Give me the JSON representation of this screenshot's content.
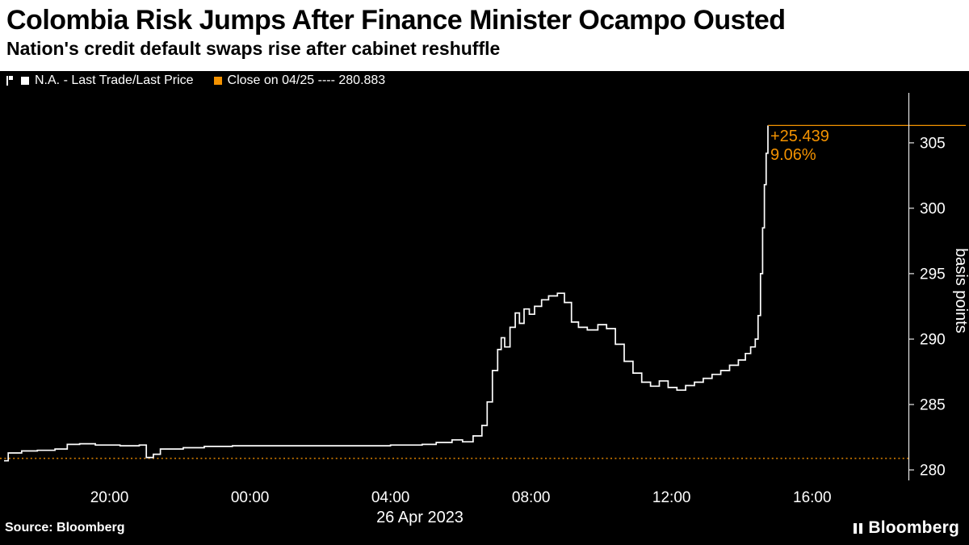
{
  "header": {
    "title": "Colombia Risk Jumps After Finance Minister Ocampo Ousted",
    "subtitle": "Nation's credit default swaps rise after cabinet reshuffle"
  },
  "legend": {
    "series1": "N.A. - Last Trade/Last Price",
    "series2": "Close on 04/25 ---- 280.883"
  },
  "annotation": {
    "change": "+25.439",
    "pct": "9.06%"
  },
  "footer": {
    "source": "Source:  Bloomberg",
    "brand": "Bloomberg"
  },
  "colors": {
    "bg": "#000000",
    "panel": "#ffffff",
    "line": "#ffffff",
    "accent": "#f39200",
    "close_line": "#d27c00",
    "axis": "#e6e6e6",
    "tick_text": "#ffffff"
  },
  "chart_data": {
    "type": "line",
    "step": true,
    "series_name": "N.A. - Last Trade/Last Price",
    "ylabel": "basis points",
    "xlabel": "26 Apr 2023",
    "grid": false,
    "legend_position": "top-left",
    "x_unit": "hours (t=3 → 20:00 on 25 Apr, t=23 → 16:00 on 26 Apr 2023)",
    "x_range": [
      0,
      25.74
    ],
    "y_range": [
      279.2,
      308.2
    ],
    "y_ticks": [
      280,
      285,
      290,
      295,
      300,
      305
    ],
    "x_ticks": [
      {
        "t": 3,
        "label": "20:00"
      },
      {
        "t": 7,
        "label": "00:00"
      },
      {
        "t": 11,
        "label": "04:00"
      },
      {
        "t": 15,
        "label": "08:00"
      },
      {
        "t": 19,
        "label": "12:00"
      },
      {
        "t": 23,
        "label": "16:00"
      }
    ],
    "close_prev": 280.883,
    "last_price": 306.322,
    "points": [
      [
        0.0,
        280.7
      ],
      [
        0.12,
        281.3
      ],
      [
        0.5,
        281.45
      ],
      [
        0.95,
        281.5
      ],
      [
        1.45,
        281.6
      ],
      [
        1.8,
        281.95
      ],
      [
        2.15,
        282.0
      ],
      [
        2.6,
        281.9
      ],
      [
        3.3,
        281.85
      ],
      [
        3.85,
        281.9
      ],
      [
        4.05,
        280.95
      ],
      [
        4.25,
        281.2
      ],
      [
        4.45,
        281.6
      ],
      [
        5.1,
        281.7
      ],
      [
        5.7,
        281.8
      ],
      [
        6.5,
        281.85
      ],
      [
        8.0,
        281.85
      ],
      [
        9.5,
        281.85
      ],
      [
        11.0,
        281.9
      ],
      [
        11.9,
        281.95
      ],
      [
        12.3,
        282.1
      ],
      [
        12.75,
        282.3
      ],
      [
        13.05,
        282.15
      ],
      [
        13.35,
        282.6
      ],
      [
        13.6,
        283.4
      ],
      [
        13.75,
        285.2
      ],
      [
        13.9,
        287.6
      ],
      [
        14.05,
        289.2
      ],
      [
        14.15,
        290.1
      ],
      [
        14.25,
        289.4
      ],
      [
        14.4,
        290.9
      ],
      [
        14.55,
        292.0
      ],
      [
        14.67,
        291.2
      ],
      [
        14.8,
        292.3
      ],
      [
        14.95,
        291.9
      ],
      [
        15.1,
        292.5
      ],
      [
        15.3,
        293.0
      ],
      [
        15.5,
        293.3
      ],
      [
        15.75,
        293.5
      ],
      [
        15.95,
        292.8
      ],
      [
        16.15,
        291.3
      ],
      [
        16.35,
        290.9
      ],
      [
        16.6,
        290.7
      ],
      [
        16.9,
        291.1
      ],
      [
        17.15,
        290.8
      ],
      [
        17.4,
        289.6
      ],
      [
        17.65,
        288.3
      ],
      [
        17.9,
        287.4
      ],
      [
        18.15,
        286.7
      ],
      [
        18.4,
        286.4
      ],
      [
        18.65,
        286.8
      ],
      [
        18.9,
        286.3
      ],
      [
        19.15,
        286.1
      ],
      [
        19.4,
        286.45
      ],
      [
        19.65,
        286.7
      ],
      [
        19.9,
        287.0
      ],
      [
        20.15,
        287.3
      ],
      [
        20.4,
        287.6
      ],
      [
        20.65,
        288.0
      ],
      [
        20.9,
        288.4
      ],
      [
        21.1,
        288.9
      ],
      [
        21.25,
        289.4
      ],
      [
        21.38,
        290.0
      ],
      [
        21.46,
        291.8
      ],
      [
        21.53,
        295.0
      ],
      [
        21.59,
        298.5
      ],
      [
        21.64,
        301.8
      ],
      [
        21.69,
        304.2
      ],
      [
        21.74,
        306.322
      ]
    ]
  }
}
